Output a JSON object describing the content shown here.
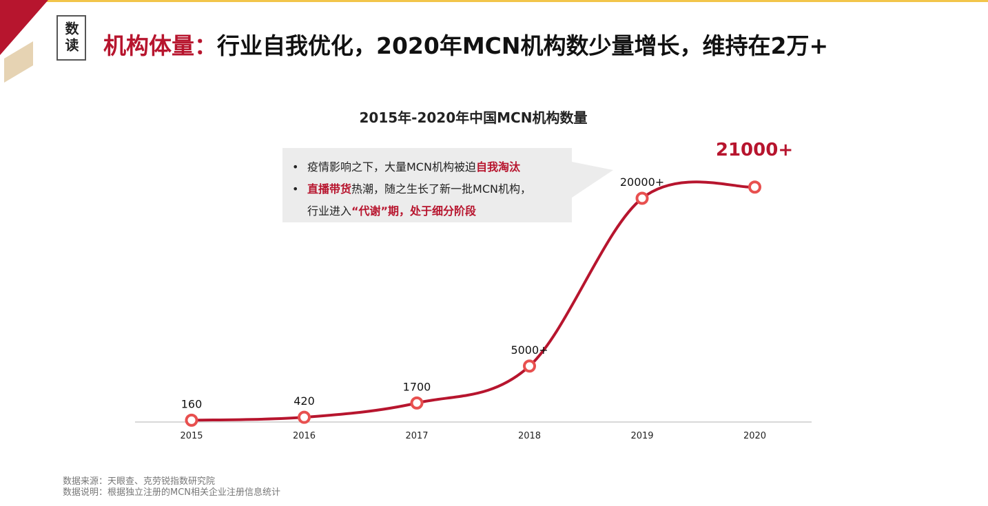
{
  "header": {
    "badge": "数读",
    "title_highlight": "机构体量：",
    "title_rest": "行业自我优化，2020年MCN机构数少量增长，维持在2万+"
  },
  "callout": {
    "line1_text": "疫情影响之下，大量MCN机构被迫",
    "line1_red": "自我淘汰",
    "line2_red": "直播带货",
    "line2_text": "热潮，随之生长了新一批MCN机构，",
    "line3_text": "行业进入",
    "line3_red": "“代谢”期，处于细分阶段"
  },
  "footer": {
    "source": "数据来源：天眼查、克劳锐指数研究院",
    "note": "数据说明：根据独立注册的MCN相关企业注册信息统计"
  },
  "colors": {
    "accent": "#b7152e",
    "marker": "#e8504f",
    "axis": "#cccccc"
  },
  "chart_data": {
    "type": "line",
    "title": "2015年-2020年中国MCN机构数量",
    "categories": [
      "2015",
      "2016",
      "2017",
      "2018",
      "2019",
      "2020"
    ],
    "values": [
      160,
      420,
      1700,
      5000,
      20000,
      21000
    ],
    "labels": [
      "160",
      "420",
      "1700",
      "5000+",
      "20000+",
      "21000+"
    ],
    "xlabel": "",
    "ylabel": "",
    "ylim": [
      0,
      24000
    ],
    "smooth": true,
    "grid": false
  }
}
